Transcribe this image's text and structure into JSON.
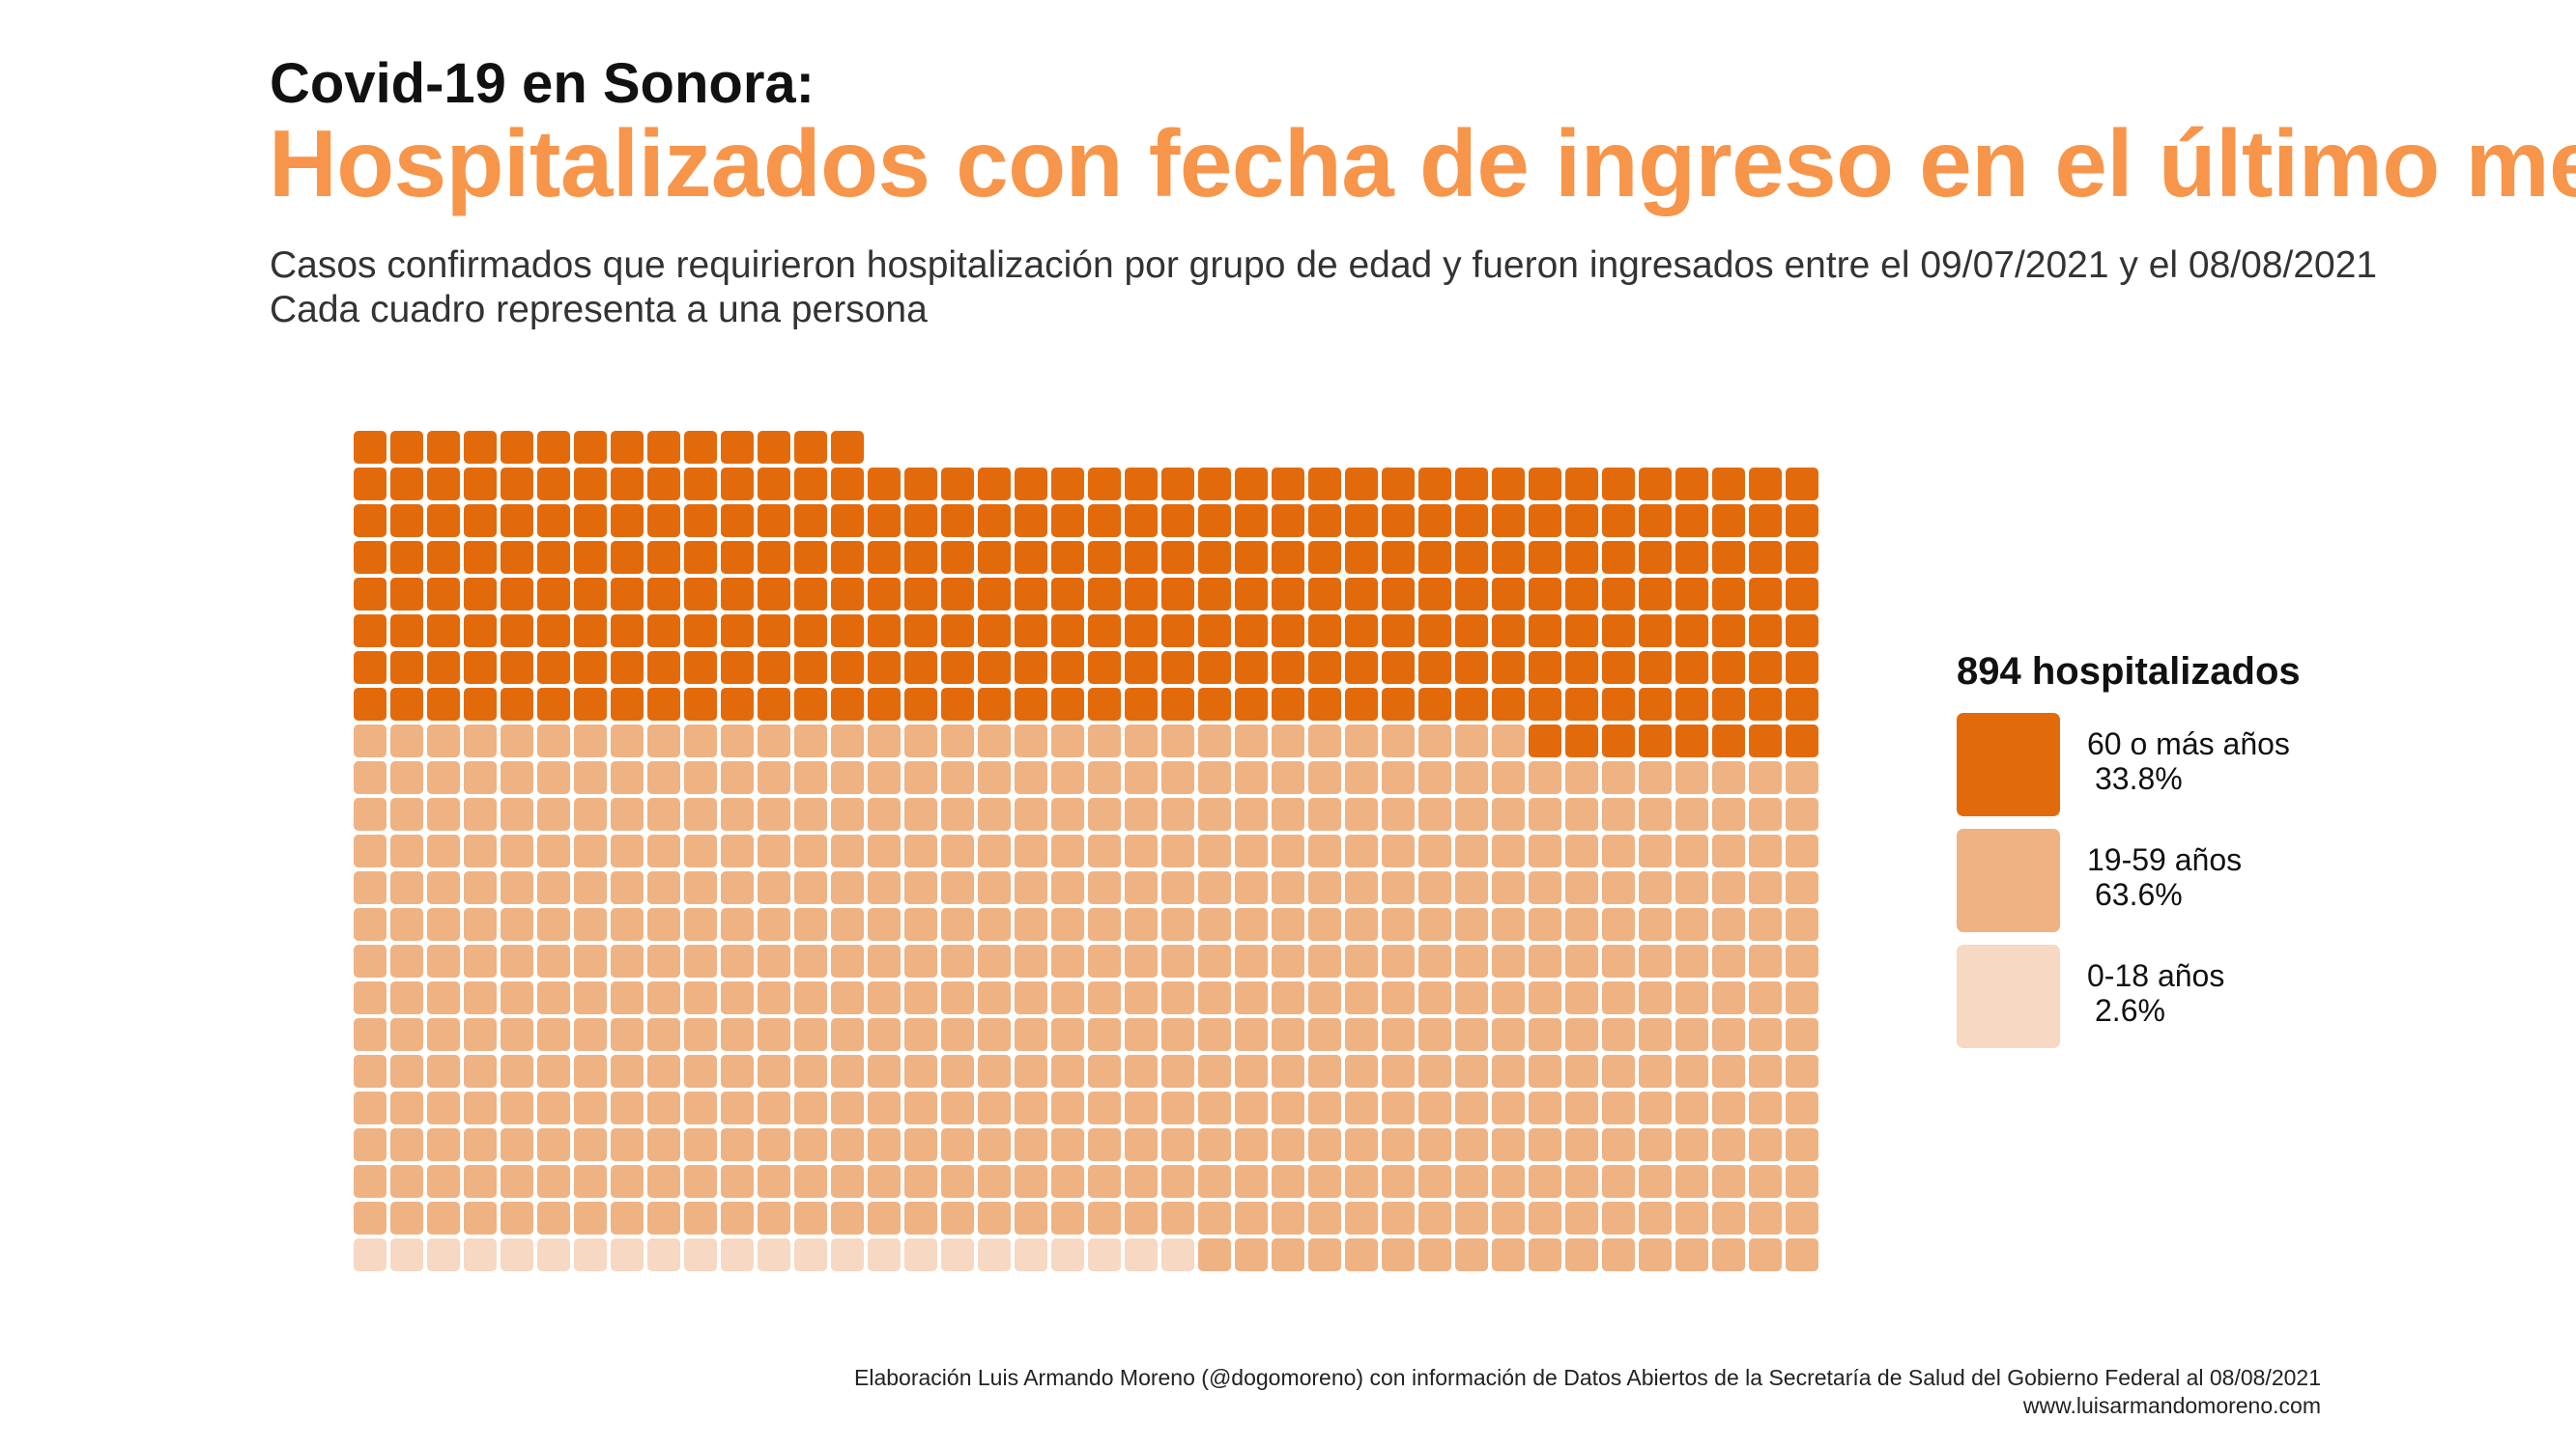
{
  "header": {
    "kicker": "Covid-19 en Sonora:",
    "title": "Hospitalizados con fecha de ingreso en el último mes",
    "subtitle_line1": "Casos confirmados que requirieron hospitalización por grupo de edad y fueron ingresados entre el 09/07/2021 y el 08/08/2021",
    "subtitle_line2": "Cada cuadro representa a una persona"
  },
  "legend": {
    "total_label": "894 hospitalizados",
    "items": [
      {
        "label": "60 o más años",
        "percent": "33.8%",
        "color": "#e36a0b"
      },
      {
        "label": "19-59 años",
        "percent": "63.6%",
        "color": "#efb283"
      },
      {
        "label": "0-18 años",
        "percent": "2.6%",
        "color": "#f7d8c2"
      }
    ]
  },
  "footer": {
    "credit": "Elaboración Luis Armando Moreno (@dogomoreno) con información de Datos Abiertos de la Secretaría de Salud del Gobierno Federal al 08/08/2021",
    "website": "www.luisarmandomoreno.com"
  },
  "chart_data": {
    "type": "waffle",
    "total": 894,
    "columns": 40,
    "unit": "1 cuadro = 1 persona",
    "fill_order": "bottom-to-top, left-to-right within each row",
    "categories": [
      "0-18 años",
      "19-59 años",
      "60 o más años"
    ],
    "values": [
      23,
      569,
      302
    ],
    "percentages": [
      2.6,
      63.6,
      33.8
    ],
    "colors": [
      "#f7d8c2",
      "#efb283",
      "#e36a0b"
    ]
  }
}
